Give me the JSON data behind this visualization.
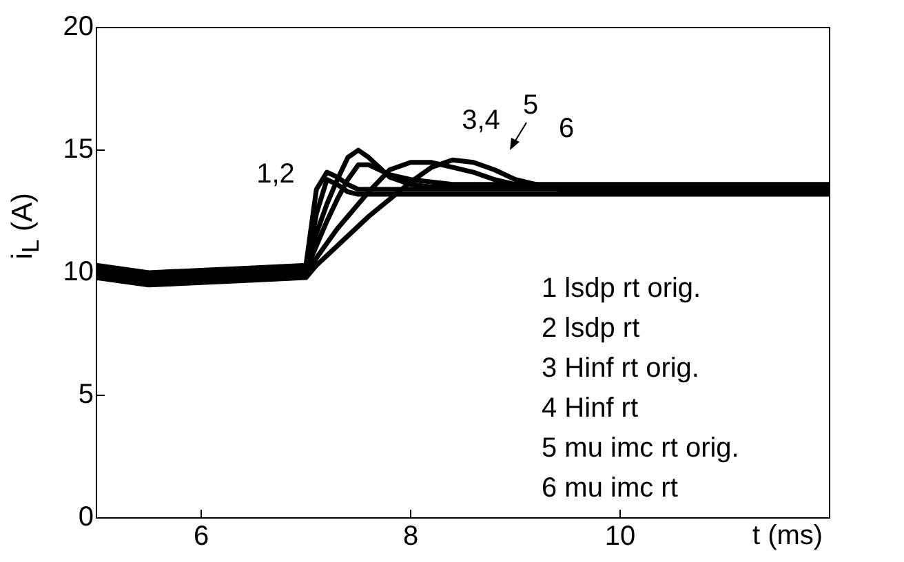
{
  "chart_data": {
    "type": "line",
    "xlabel": "t (ms)",
    "ylabel": "i$_{L}$ (A)",
    "xlim": [
      5,
      12
    ],
    "xticks": [
      6,
      8,
      10
    ],
    "ylim": [
      0,
      20
    ],
    "yticks": [
      0,
      5,
      10,
      15,
      20
    ],
    "grid": false,
    "legend": false,
    "marker": "none",
    "line_style": "solid",
    "x": [
      5,
      5.5,
      6,
      6.5,
      7,
      7.1,
      7.2,
      7.3,
      7.4,
      7.5,
      7.6,
      7.8,
      8,
      8.2,
      8.4,
      8.6,
      8.8,
      9,
      9.5,
      10,
      11,
      12
    ],
    "series": [
      {
        "color": "#000000",
        "values": [
          10.3,
          10,
          10.1,
          10.2,
          10.3,
          13.4,
          14.1,
          13.9,
          13.6,
          13.4,
          13.4,
          13.4,
          13.4,
          13.4,
          13.4,
          13.4,
          13.4,
          13.4,
          13.4,
          13.4,
          13.4,
          13.4
        ]
      },
      {
        "color": "#000000",
        "values": [
          10,
          9.7,
          9.8,
          9.9,
          10,
          12.4,
          13.8,
          13.6,
          13.3,
          13.2,
          13.2,
          13.2,
          13.2,
          13.2,
          13.2,
          13.2,
          13.2,
          13.2,
          13.2,
          13.2,
          13.2,
          13.2
        ]
      },
      {
        "color": "#000000",
        "values": [
          10.2,
          9.9,
          10,
          10.1,
          10.2,
          11.6,
          12.8,
          13.8,
          14.7,
          15,
          14.7,
          13.9,
          13.6,
          13.5,
          13.5,
          13.5,
          13.5,
          13.5,
          13.5,
          13.5,
          13.5,
          13.5
        ]
      },
      {
        "color": "#000000",
        "values": [
          10.1,
          9.8,
          9.9,
          10,
          10.1,
          11.1,
          12.1,
          13,
          13.8,
          14.4,
          14.4,
          14,
          13.8,
          13.7,
          13.6,
          13.6,
          13.6,
          13.6,
          13.6,
          13.6,
          13.6,
          13.6
        ]
      },
      {
        "color": "#000000",
        "values": [
          9.9,
          9.6,
          9.7,
          9.8,
          9.9,
          10.6,
          11.2,
          11.8,
          12.3,
          12.8,
          13.3,
          14.2,
          14.5,
          14.5,
          14.3,
          14.1,
          13.8,
          13.6,
          13.5,
          13.5,
          13.5,
          13.5
        ]
      },
      {
        "color": "#000000",
        "values": [
          9.8,
          9.5,
          9.6,
          9.7,
          9.8,
          10.3,
          10.7,
          11.1,
          11.5,
          11.9,
          12.3,
          13,
          13.7,
          14.3,
          14.6,
          14.5,
          14.2,
          13.8,
          13.3,
          13.3,
          13.3,
          13.3
        ]
      }
    ],
    "annotations": [
      "1,2",
      "3,4",
      "5",
      "6",
      "1 lsdp rt orig.",
      "2 lsdp rt",
      "3 Hinf rt orig.",
      "4 Hinf rt",
      "5 mu imc rt orig.",
      "6 mu imc rt"
    ]
  }
}
